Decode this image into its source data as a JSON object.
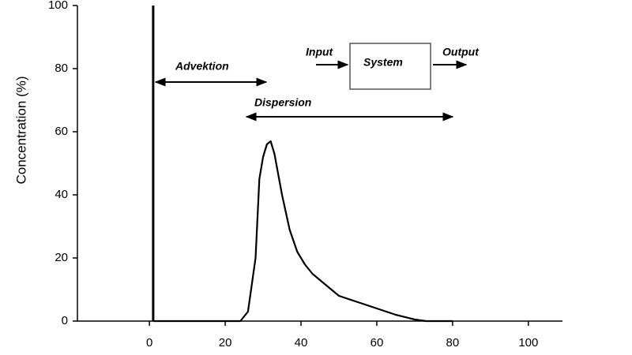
{
  "chart_data": {
    "type": "line",
    "y_label": "Concentration (%)",
    "annotations": {
      "advection": "Advektion",
      "dispersion": "Dispersion",
      "input": "Input",
      "system": "System",
      "output": "Output"
    },
    "xlim": [
      -19,
      109
    ],
    "xticks": [
      0,
      20,
      40,
      60,
      80,
      100
    ],
    "ylim": [
      0,
      100
    ],
    "yticks": [
      0,
      20,
      40,
      60,
      80,
      100
    ],
    "series": [
      {
        "color": "#000000",
        "x": [
          1,
          1
        ],
        "values": [
          0,
          100
        ]
      },
      {
        "color": "#000000",
        "x": [
          1,
          24,
          26,
          28,
          29,
          30,
          31,
          32,
          33,
          35,
          37,
          39,
          41,
          43,
          46,
          50,
          55,
          60,
          65,
          70,
          73,
          80
        ],
        "values": [
          0,
          0,
          3,
          20,
          45,
          52,
          56,
          57,
          53,
          40,
          29,
          22,
          18,
          15,
          12,
          8,
          6,
          4,
          2,
          0.5,
          0,
          0
        ]
      }
    ]
  }
}
